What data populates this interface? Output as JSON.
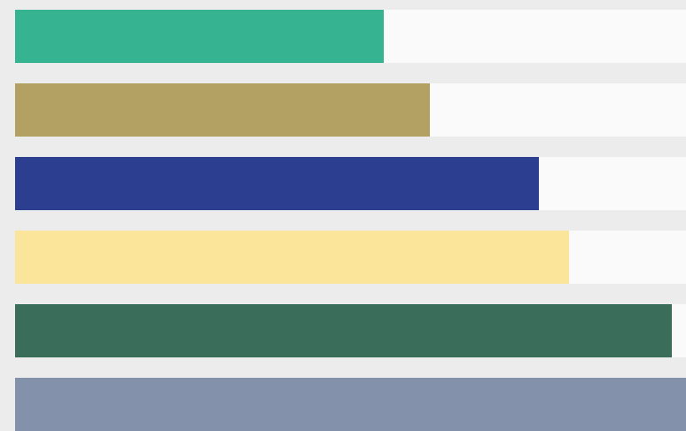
{
  "chart_data": {
    "type": "bar",
    "orientation": "horizontal",
    "title": "",
    "xlabel": "",
    "ylabel": "",
    "grid": false,
    "legend": "none",
    "xlim": [
      0,
      1
    ],
    "series": [
      {
        "values": [
          0.55,
          0.618,
          0.781,
          0.825,
          0.979,
          1.0
        ],
        "colors": [
          "#36b391",
          "#b3a163",
          "#2c3e8f",
          "#fbe59b",
          "#3a6e5a",
          "#8491aa"
        ]
      }
    ],
    "track_color": "#fafafa",
    "background_color": "#ececec"
  }
}
